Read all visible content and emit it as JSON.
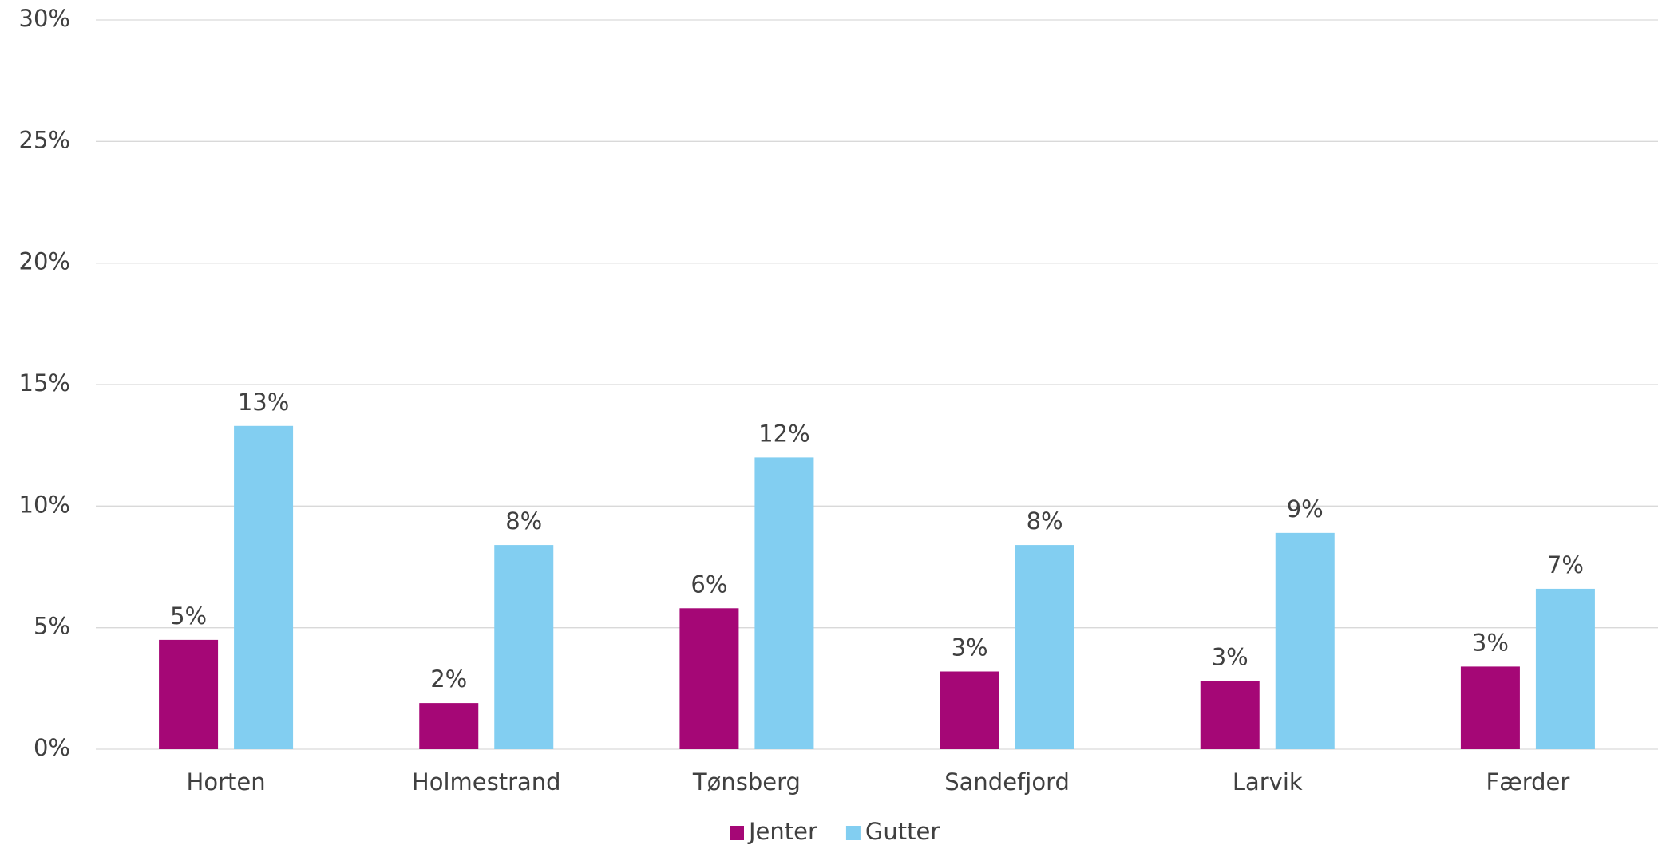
{
  "chart_data": {
    "type": "bar",
    "categories": [
      "Horten",
      "Holmestrand",
      "Tønsberg",
      "Sandefjord",
      "Larvik",
      "Færder"
    ],
    "series": [
      {
        "name": "Jenter",
        "color": "#a50776",
        "values": [
          4.5,
          1.9,
          5.8,
          3.2,
          2.8,
          3.4
        ],
        "value_labels": [
          "5%",
          "2%",
          "6%",
          "3%",
          "3%",
          "3%"
        ]
      },
      {
        "name": "Gutter",
        "color": "#82cef1",
        "values": [
          13.3,
          8.4,
          12.0,
          8.4,
          8.9,
          6.6
        ],
        "value_labels": [
          "13%",
          "8%",
          "12%",
          "8%",
          "9%",
          "7%"
        ]
      }
    ],
    "ylim": [
      0,
      30
    ],
    "yticks": [
      {
        "value": 0,
        "label": "0%"
      },
      {
        "value": 5,
        "label": "5%"
      },
      {
        "value": 10,
        "label": "10%"
      },
      {
        "value": 15,
        "label": "15%"
      },
      {
        "value": 20,
        "label": "20%"
      },
      {
        "value": 25,
        "label": "25%"
      },
      {
        "value": 30,
        "label": "30%"
      }
    ],
    "grid": true,
    "legend": "bottom"
  }
}
